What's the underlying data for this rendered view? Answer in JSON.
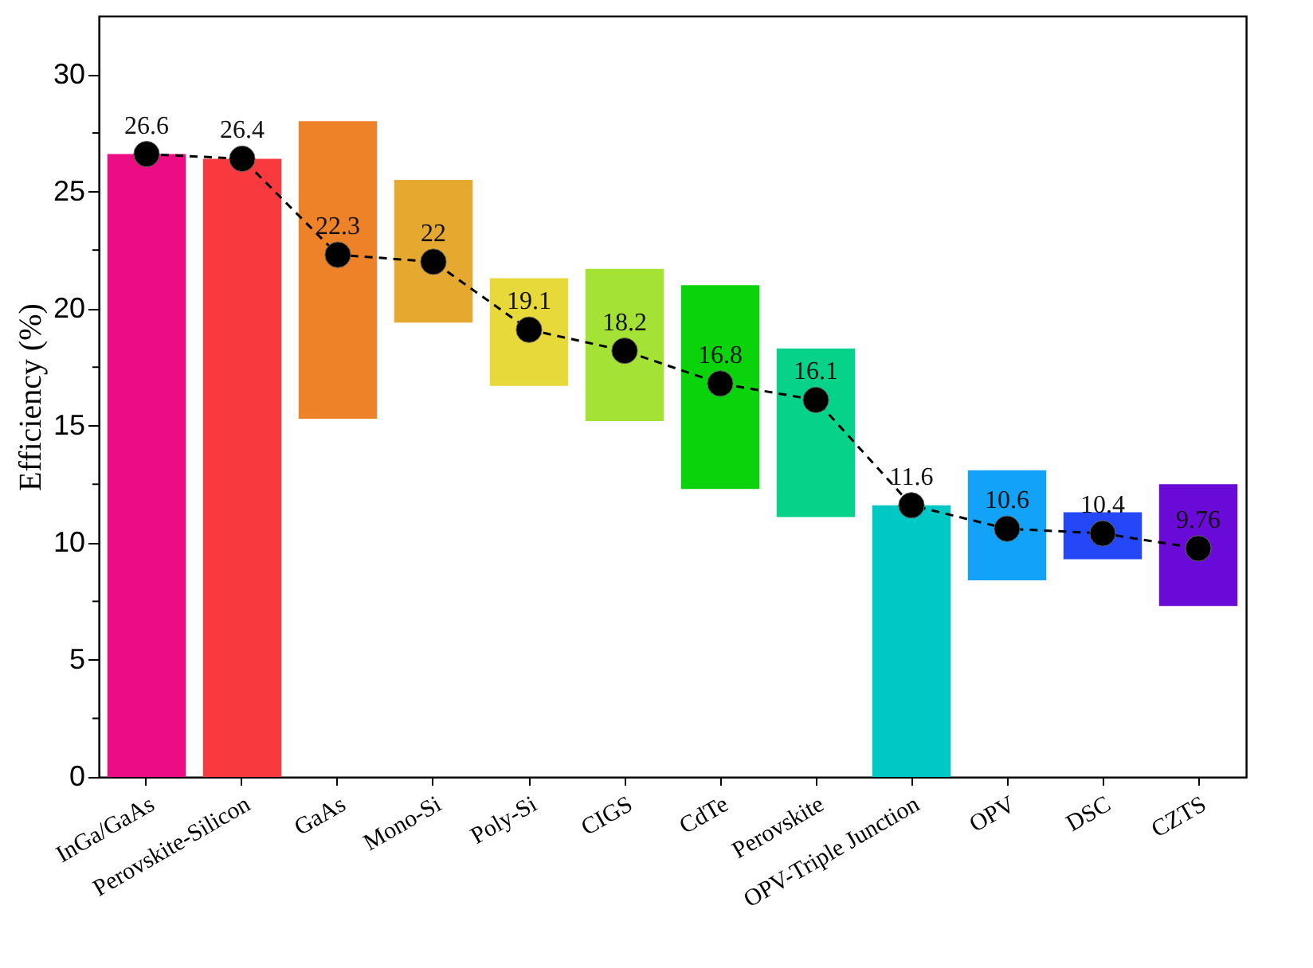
{
  "chart_data": {
    "type": "bar",
    "ylabel": "Efficiency (%)",
    "categories": [
      "InGa/GaAs",
      "Perovskite-Silicon",
      "GaAs",
      "Mono-Si",
      "Poly-Si",
      "CIGS",
      "CdTe",
      "Perovskite",
      "OPV-Triple Junction",
      "OPV",
      "DSC",
      "CZTS"
    ],
    "series": [
      {
        "colors": [
          "#ec0c84",
          "#f83a3e",
          "#ee8228",
          "#e6a930",
          "#e8d93a",
          "#a4e236",
          "#0bd30b",
          "#06d28a",
          "#00c8c4",
          "#12a2f8",
          "#2448f8",
          "#6a0ad8"
        ],
        "base": [
          0,
          0,
          15.3,
          19.4,
          16.7,
          15.2,
          12.3,
          11.1,
          0,
          8.4,
          9.3,
          7.3
        ],
        "values": [
          26.6,
          26.4,
          12.7,
          6.1,
          4.6,
          6.5,
          8.7,
          7.2,
          11.6,
          4.7,
          2.0,
          5.2
        ]
      },
      {
        "type": "line",
        "color": "#000000",
        "marker": "circle",
        "line_style": "dashed",
        "data_labels": true,
        "values": [
          26.6,
          26.4,
          22.3,
          22,
          19.1,
          18.2,
          16.8,
          16.1,
          11.6,
          10.6,
          10.4,
          9.76
        ]
      }
    ],
    "ylim": [
      0,
      32.5
    ],
    "yticks": [
      0,
      {
        "value": 2.5,
        "label": null
      },
      5,
      {
        "value": 7.5,
        "label": null
      },
      10,
      {
        "value": 12.5,
        "label": null
      },
      15,
      {
        "value": 17.5,
        "label": null
      },
      20,
      {
        "value": 22.5,
        "label": null
      },
      25,
      {
        "value": 27.5,
        "label": null
      },
      30
    ]
  }
}
